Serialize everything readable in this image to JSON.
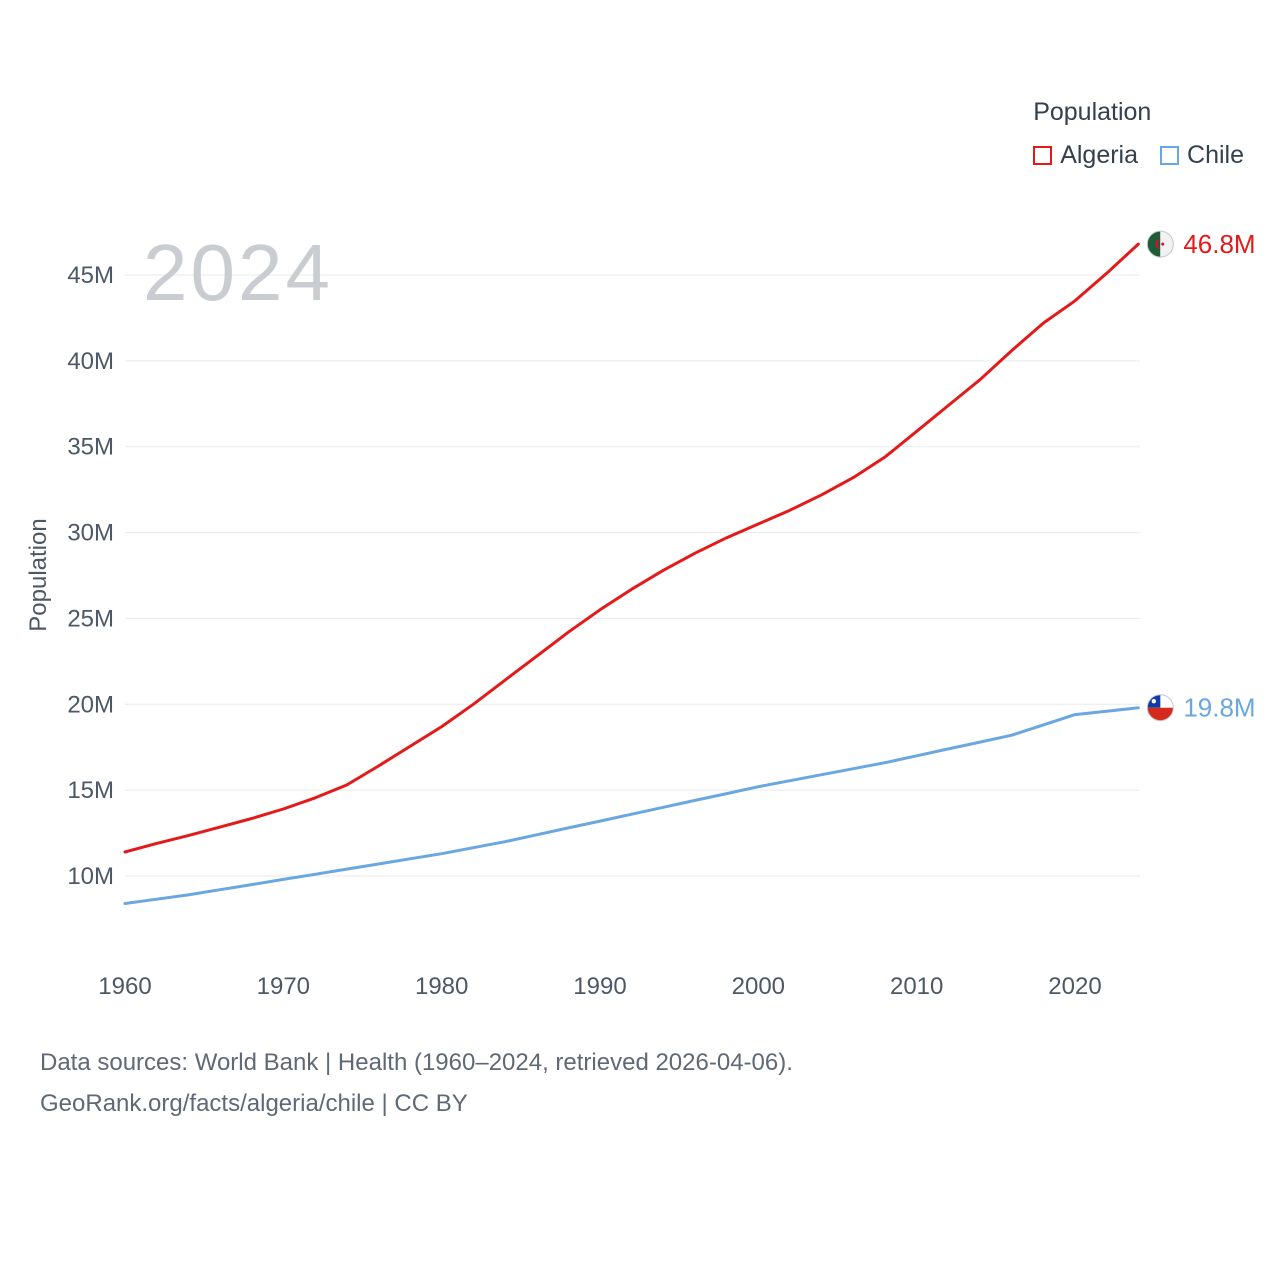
{
  "chart_data": {
    "type": "line",
    "title": "Population",
    "ylabel": "Population",
    "xlabel": "",
    "watermark": "2024",
    "grid": true,
    "legend_position": "top-right",
    "values_unit": "millions",
    "xlim": [
      1960,
      2024
    ],
    "ylim": [
      8,
      47
    ],
    "x_ticks": [
      1960,
      1970,
      1980,
      1990,
      2000,
      2010,
      2020
    ],
    "y_ticks": [
      {
        "value": 10,
        "label": "10M"
      },
      {
        "value": 15,
        "label": "15M"
      },
      {
        "value": 20,
        "label": "20M"
      },
      {
        "value": 25,
        "label": "25M"
      },
      {
        "value": 30,
        "label": "30M"
      },
      {
        "value": 35,
        "label": "35M"
      },
      {
        "value": 40,
        "label": "40M"
      },
      {
        "value": 45,
        "label": "45M"
      }
    ],
    "x": [
      1960,
      1962,
      1964,
      1966,
      1968,
      1970,
      1972,
      1974,
      1976,
      1978,
      1980,
      1982,
      1984,
      1986,
      1988,
      1990,
      1992,
      1994,
      1996,
      1998,
      2000,
      2002,
      2004,
      2006,
      2008,
      2010,
      2012,
      2014,
      2016,
      2018,
      2020,
      2022,
      2024
    ],
    "series": [
      {
        "name": "Algeria",
        "color": "#e41a1a",
        "end_label": "46.8M",
        "flag": "algeria",
        "values": [
          11.4,
          11.9,
          12.35,
          12.85,
          13.35,
          13.9,
          14.55,
          15.3,
          16.4,
          17.55,
          18.7,
          20.0,
          21.4,
          22.8,
          24.2,
          25.5,
          26.7,
          27.8,
          28.8,
          29.7,
          30.5,
          31.3,
          32.2,
          33.2,
          34.4,
          35.9,
          37.4,
          38.9,
          40.6,
          42.2,
          43.5,
          45.1,
          46.8
        ]
      },
      {
        "name": "Chile",
        "color": "#6aa7e0",
        "end_label": "19.8M",
        "flag": "chile",
        "values": [
          8.4,
          8.65,
          8.9,
          9.2,
          9.5,
          9.8,
          10.1,
          10.4,
          10.7,
          11.0,
          11.3,
          11.65,
          12.0,
          12.4,
          12.8,
          13.2,
          13.6,
          14.0,
          14.4,
          14.8,
          15.2,
          15.55,
          15.9,
          16.25,
          16.6,
          17.0,
          17.4,
          17.8,
          18.2,
          18.8,
          19.4,
          19.6,
          19.8
        ]
      }
    ]
  },
  "flags": {
    "algeria": {
      "green": "#1e5b38",
      "white": "#f2f2f2",
      "crescent": "#d21034"
    },
    "chile": {
      "blue": "#0d3da8",
      "white": "#ffffff",
      "red": "#d52b1e"
    }
  },
  "colors": {
    "grid": "#e9eaec",
    "tick_text": "#4c5866",
    "watermark": "#c9cdd2",
    "footer_text": "#5f6975"
  },
  "footer": {
    "line1": "Data sources: World Bank | Health (1960–2024, retrieved 2026-04-06).",
    "line2": "GeoRank.org/facts/algeria/chile | CC BY"
  }
}
